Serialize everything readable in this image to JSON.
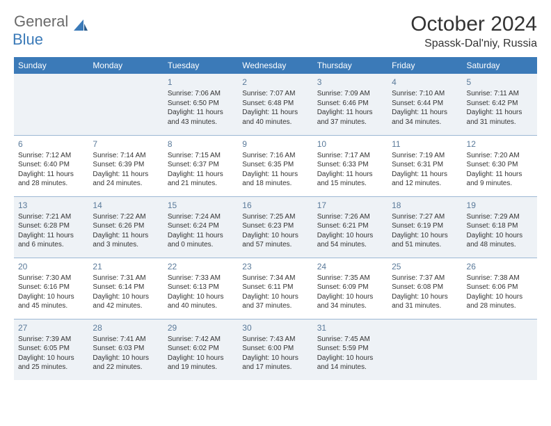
{
  "logo": {
    "text1": "General",
    "text2": "Blue"
  },
  "title": "October 2024",
  "location": "Spassk-Dal'niy, Russia",
  "colors": {
    "header_bg": "#3b7ab8",
    "header_text": "#ffffff",
    "border": "#9cb8d4",
    "daynum": "#5a7a9a",
    "shaded": "#eef2f6",
    "logo_gray": "#6a6a6a",
    "logo_blue": "#3b7ab8"
  },
  "weekdays": [
    "Sunday",
    "Monday",
    "Tuesday",
    "Wednesday",
    "Thursday",
    "Friday",
    "Saturday"
  ],
  "weeks": [
    [
      null,
      null,
      {
        "n": "1",
        "sr": "7:06 AM",
        "ss": "6:50 PM",
        "dl": "11 hours and 43 minutes."
      },
      {
        "n": "2",
        "sr": "7:07 AM",
        "ss": "6:48 PM",
        "dl": "11 hours and 40 minutes."
      },
      {
        "n": "3",
        "sr": "7:09 AM",
        "ss": "6:46 PM",
        "dl": "11 hours and 37 minutes."
      },
      {
        "n": "4",
        "sr": "7:10 AM",
        "ss": "6:44 PM",
        "dl": "11 hours and 34 minutes."
      },
      {
        "n": "5",
        "sr": "7:11 AM",
        "ss": "6:42 PM",
        "dl": "11 hours and 31 minutes."
      }
    ],
    [
      {
        "n": "6",
        "sr": "7:12 AM",
        "ss": "6:40 PM",
        "dl": "11 hours and 28 minutes."
      },
      {
        "n": "7",
        "sr": "7:14 AM",
        "ss": "6:39 PM",
        "dl": "11 hours and 24 minutes."
      },
      {
        "n": "8",
        "sr": "7:15 AM",
        "ss": "6:37 PM",
        "dl": "11 hours and 21 minutes."
      },
      {
        "n": "9",
        "sr": "7:16 AM",
        "ss": "6:35 PM",
        "dl": "11 hours and 18 minutes."
      },
      {
        "n": "10",
        "sr": "7:17 AM",
        "ss": "6:33 PM",
        "dl": "11 hours and 15 minutes."
      },
      {
        "n": "11",
        "sr": "7:19 AM",
        "ss": "6:31 PM",
        "dl": "11 hours and 12 minutes."
      },
      {
        "n": "12",
        "sr": "7:20 AM",
        "ss": "6:30 PM",
        "dl": "11 hours and 9 minutes."
      }
    ],
    [
      {
        "n": "13",
        "sr": "7:21 AM",
        "ss": "6:28 PM",
        "dl": "11 hours and 6 minutes."
      },
      {
        "n": "14",
        "sr": "7:22 AM",
        "ss": "6:26 PM",
        "dl": "11 hours and 3 minutes."
      },
      {
        "n": "15",
        "sr": "7:24 AM",
        "ss": "6:24 PM",
        "dl": "11 hours and 0 minutes."
      },
      {
        "n": "16",
        "sr": "7:25 AM",
        "ss": "6:23 PM",
        "dl": "10 hours and 57 minutes."
      },
      {
        "n": "17",
        "sr": "7:26 AM",
        "ss": "6:21 PM",
        "dl": "10 hours and 54 minutes."
      },
      {
        "n": "18",
        "sr": "7:27 AM",
        "ss": "6:19 PM",
        "dl": "10 hours and 51 minutes."
      },
      {
        "n": "19",
        "sr": "7:29 AM",
        "ss": "6:18 PM",
        "dl": "10 hours and 48 minutes."
      }
    ],
    [
      {
        "n": "20",
        "sr": "7:30 AM",
        "ss": "6:16 PM",
        "dl": "10 hours and 45 minutes."
      },
      {
        "n": "21",
        "sr": "7:31 AM",
        "ss": "6:14 PM",
        "dl": "10 hours and 42 minutes."
      },
      {
        "n": "22",
        "sr": "7:33 AM",
        "ss": "6:13 PM",
        "dl": "10 hours and 40 minutes."
      },
      {
        "n": "23",
        "sr": "7:34 AM",
        "ss": "6:11 PM",
        "dl": "10 hours and 37 minutes."
      },
      {
        "n": "24",
        "sr": "7:35 AM",
        "ss": "6:09 PM",
        "dl": "10 hours and 34 minutes."
      },
      {
        "n": "25",
        "sr": "7:37 AM",
        "ss": "6:08 PM",
        "dl": "10 hours and 31 minutes."
      },
      {
        "n": "26",
        "sr": "7:38 AM",
        "ss": "6:06 PM",
        "dl": "10 hours and 28 minutes."
      }
    ],
    [
      {
        "n": "27",
        "sr": "7:39 AM",
        "ss": "6:05 PM",
        "dl": "10 hours and 25 minutes."
      },
      {
        "n": "28",
        "sr": "7:41 AM",
        "ss": "6:03 PM",
        "dl": "10 hours and 22 minutes."
      },
      {
        "n": "29",
        "sr": "7:42 AM",
        "ss": "6:02 PM",
        "dl": "10 hours and 19 minutes."
      },
      {
        "n": "30",
        "sr": "7:43 AM",
        "ss": "6:00 PM",
        "dl": "10 hours and 17 minutes."
      },
      {
        "n": "31",
        "sr": "7:45 AM",
        "ss": "5:59 PM",
        "dl": "10 hours and 14 minutes."
      },
      null,
      null
    ]
  ],
  "labels": {
    "sunrise": "Sunrise:",
    "sunset": "Sunset:",
    "daylight": "Daylight:"
  }
}
